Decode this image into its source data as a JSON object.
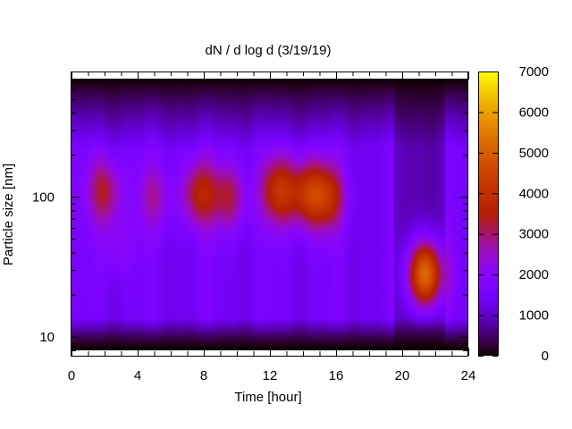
{
  "chart_data": {
    "type": "heatmap",
    "title": "dN / d log d (3/19/19)",
    "xlabel": "Time [hour]",
    "ylabel": "Particle size [nm]",
    "xlim": [
      0,
      24
    ],
    "x_ticks": [
      0,
      4,
      8,
      12,
      16,
      20,
      24
    ],
    "ylim_nm": [
      8,
      700
    ],
    "y_scale": "log",
    "y_ticks": [
      10,
      100
    ],
    "colorbar": {
      "range": [
        0,
        7000
      ],
      "ticks": [
        0,
        1000,
        2000,
        3000,
        4000,
        5000,
        6000,
        7000
      ],
      "colormap": "gnuplot",
      "colors": [
        "#000000",
        "#4b00a0",
        "#7f00ff",
        "#b31fcf",
        "#d04030",
        "#e06000",
        "#f0a000",
        "#ffff00"
      ]
    },
    "background_level": 1500,
    "events": [
      {
        "time_hour": 2.0,
        "diameter_nm": 110,
        "peak": 3300
      },
      {
        "time_hour": 2.8,
        "diameter_nm": 45,
        "peak": 2100
      },
      {
        "time_hour": 5.0,
        "diameter_nm": 100,
        "peak": 2600
      },
      {
        "time_hour": 7.7,
        "diameter_nm": 105,
        "peak": 3500
      },
      {
        "time_hour": 9.5,
        "diameter_nm": 100,
        "peak": 3200
      },
      {
        "time_hour": 12.5,
        "diameter_nm": 110,
        "peak": 3900
      },
      {
        "time_hour": 14.2,
        "diameter_nm": 105,
        "peak": 3800
      },
      {
        "time_hour": 15.5,
        "diameter_nm": 100,
        "peak": 3700
      },
      {
        "time_hour": 21.4,
        "diameter_nm": 28,
        "peak": 5900
      }
    ]
  }
}
